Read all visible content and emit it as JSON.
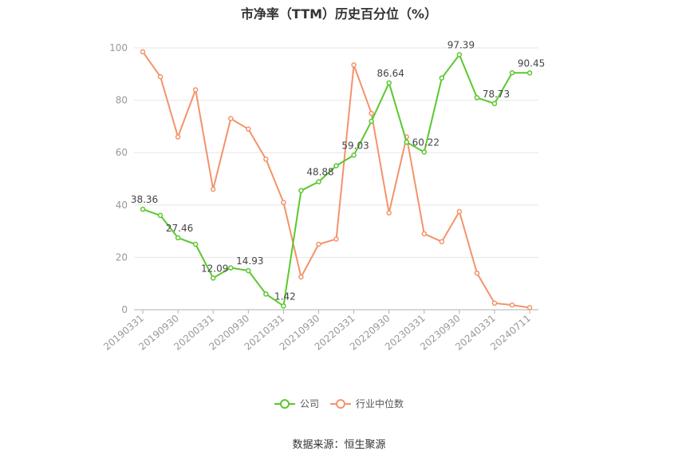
{
  "chart_data": {
    "type": "line",
    "title": "市净率（TTM）历史百分位（%）",
    "x": [
      "20190331",
      "20190630",
      "20190930",
      "20191231",
      "20200331",
      "20200630",
      "20200930",
      "20201231",
      "20210331",
      "20210630",
      "20210930",
      "20211231",
      "20220331",
      "20220630",
      "20220930",
      "20221231",
      "20230331",
      "20230630",
      "20230930",
      "20231231",
      "20240331",
      "20240630",
      "20240711"
    ],
    "x_tick_labels": [
      "20190331",
      "20190930",
      "20200331",
      "20200930",
      "20210331",
      "20210930",
      "20220331",
      "20220930",
      "20230331",
      "20230930",
      "20240331",
      "20240711"
    ],
    "y_ticks": [
      0,
      20,
      40,
      60,
      80,
      100
    ],
    "ylim": [
      0,
      100
    ],
    "grid": true,
    "legend_position": "bottom",
    "series": [
      {
        "name": "公司",
        "color": "#5cc72e",
        "values": [
          38.36,
          36.0,
          27.46,
          25.0,
          12.09,
          16.0,
          14.93,
          6.0,
          1.42,
          45.5,
          48.88,
          55.0,
          59.03,
          72.0,
          86.64,
          64.0,
          60.22,
          88.5,
          97.39,
          81.0,
          78.73,
          90.5,
          90.45
        ],
        "labels": {
          "0": "38.36",
          "2": "27.46",
          "4": "12.09",
          "6": "14.93",
          "8": "1.42",
          "10": "48.88",
          "12": "59.03",
          "14": "86.64",
          "16": "60.22",
          "18": "97.39",
          "20": "78.73",
          "22": "90.45"
        }
      },
      {
        "name": "行业中位数",
        "color": "#f3936a",
        "values": [
          98.5,
          89.0,
          66.0,
          84.0,
          46.0,
          73.0,
          69.0,
          57.5,
          41.0,
          12.5,
          25.0,
          27.0,
          93.5,
          75.0,
          37.0,
          66.0,
          29.0,
          26.0,
          37.5,
          14.0,
          2.5,
          1.8,
          0.8
        ]
      }
    ]
  },
  "source_text": "数据来源：恒生聚源"
}
